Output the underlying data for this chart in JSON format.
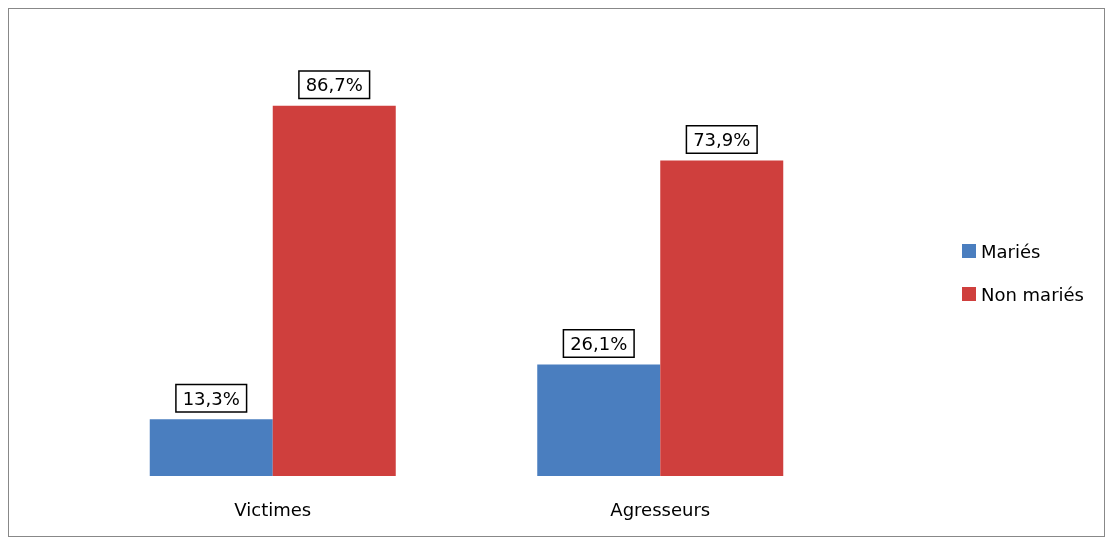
{
  "chart_data": {
    "type": "bar",
    "categories": [
      "Victimes",
      "Agresseurs"
    ],
    "series": [
      {
        "name": "Mariés",
        "color": "#4a7ebf",
        "values": [
          13.3,
          26.1
        ],
        "value_labels": [
          "13,3%",
          "26,1%"
        ]
      },
      {
        "name": "Non mariés",
        "color": "#cf3f3d",
        "values": [
          86.7,
          73.9
        ],
        "value_labels": [
          "86,7%",
          "73,9%"
        ]
      }
    ],
    "legend": "right",
    "grid": false
  }
}
